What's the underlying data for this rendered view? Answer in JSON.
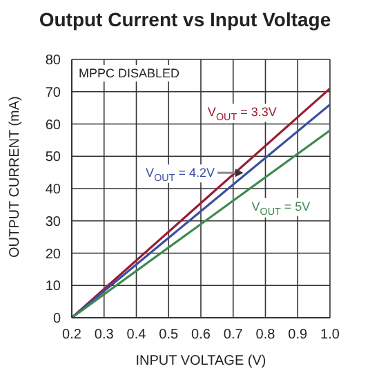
{
  "chart_data": {
    "type": "line",
    "title": "Output Current vs Input Voltage",
    "xlabel": "INPUT VOLTAGE (V)",
    "ylabel": "OUTPUT CURRENT (mA)",
    "x": [
      0.2,
      0.6,
      1.0
    ],
    "series": [
      {
        "name": "V$_{OUT}$ = 3.3V",
        "color": "#9b1c31",
        "values": [
          0,
          35.5,
          71
        ]
      },
      {
        "name": "V$_{OUT}$ = 4.2V",
        "color": "#3a4fa0",
        "values": [
          0,
          33,
          66
        ]
      },
      {
        "name": "V$_{OUT}$ = 5V",
        "color": "#3f8a50",
        "values": [
          0,
          29,
          58
        ]
      }
    ],
    "xlim": [
      0.2,
      1.0
    ],
    "xticks": [
      {
        "value": 0.2,
        "label": "0.2"
      },
      {
        "value": 0.3,
        "label": "0.3"
      },
      {
        "value": 0.4,
        "label": "0.4"
      },
      {
        "value": 0.5,
        "label": "0.5"
      },
      {
        "value": 0.6,
        "label": "0.6"
      },
      {
        "value": 0.7,
        "label": "0.7"
      },
      {
        "value": 0.8,
        "label": "0.8"
      },
      {
        "value": 0.9,
        "label": "0.9"
      },
      {
        "value": 1.0,
        "label": "1.0"
      }
    ],
    "ylim": [
      0,
      80
    ],
    "yticks": [
      0,
      10,
      20,
      30,
      40,
      50,
      60,
      70,
      80
    ],
    "annotations": [
      "MPPC DISABLED"
    ],
    "grid": true,
    "legend": false,
    "marker": "none",
    "line_style": "solid"
  }
}
